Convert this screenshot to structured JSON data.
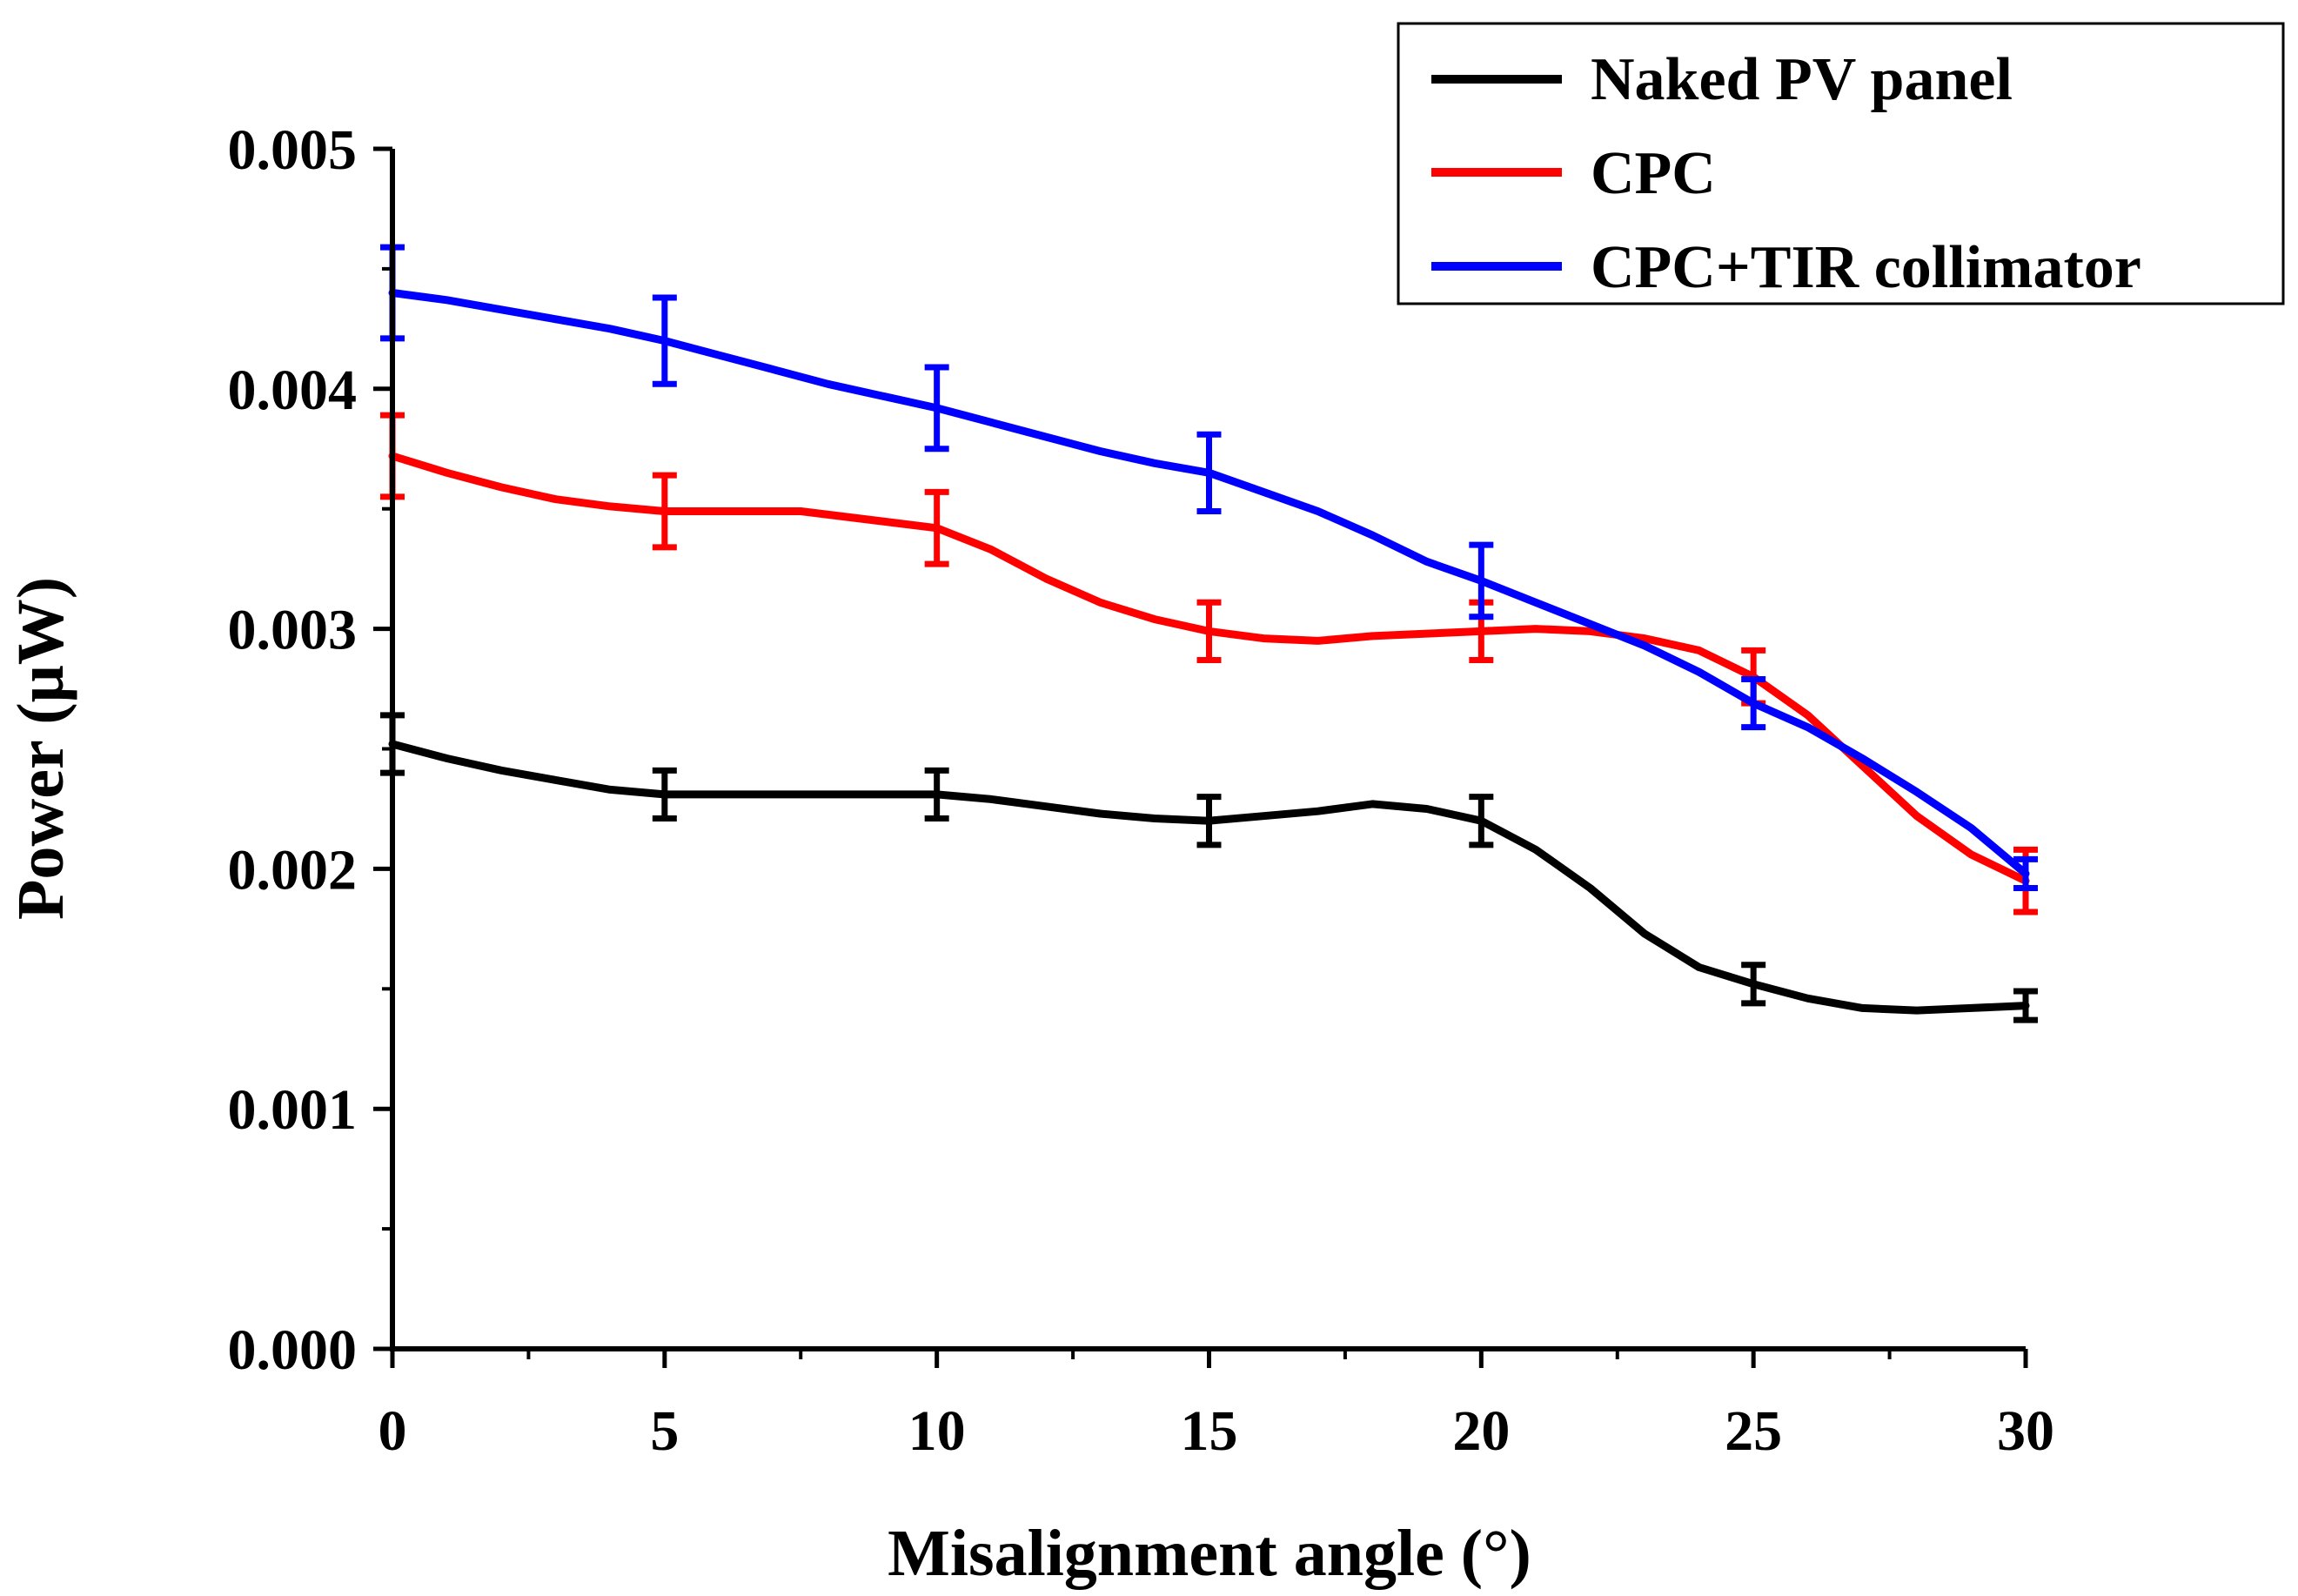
{
  "chart_data": {
    "type": "line",
    "title": "",
    "xlabel": "Misalignment angle (°)",
    "ylabel": "Power (μW)",
    "xlim": [
      0,
      30
    ],
    "ylim": [
      0.0,
      0.005
    ],
    "x_ticks": [
      0,
      5,
      10,
      15,
      20,
      25,
      30
    ],
    "x_tick_labels": [
      "0",
      "5",
      "10",
      "15",
      "20",
      "25",
      "30"
    ],
    "y_ticks": [
      0.0,
      0.001,
      0.002,
      0.003,
      0.004,
      0.005
    ],
    "y_tick_labels": [
      "0.000",
      "0.001",
      "0.002",
      "0.003",
      "0.004",
      "0.005"
    ],
    "grid": false,
    "legend_position": "top-right",
    "series": [
      {
        "name": "Naked PV panel",
        "color": "#000000",
        "curve_x": [
          0,
          1,
          2,
          3,
          4,
          5,
          7.5,
          10,
          11,
          12,
          13,
          14,
          15,
          16,
          17,
          18,
          19,
          20,
          21,
          22,
          23,
          24,
          25,
          26,
          27,
          28,
          29,
          30
        ],
        "curve_y": [
          0.00252,
          0.00246,
          0.00241,
          0.00237,
          0.00233,
          0.00231,
          0.00231,
          0.00231,
          0.00229,
          0.00226,
          0.00223,
          0.00221,
          0.0022,
          0.00222,
          0.00224,
          0.00227,
          0.00225,
          0.0022,
          0.00208,
          0.00192,
          0.00173,
          0.00159,
          0.00152,
          0.00146,
          0.00142,
          0.00141,
          0.00142,
          0.00143
        ],
        "points_x": [
          0,
          5,
          10,
          15,
          20,
          25,
          30
        ],
        "points_y": [
          0.00252,
          0.00231,
          0.00231,
          0.0022,
          0.0022,
          0.00152,
          0.00143
        ],
        "errors": [
          0.00012,
          0.0001,
          0.0001,
          0.0001,
          0.0001,
          8e-05,
          6e-05
        ]
      },
      {
        "name": "CPC",
        "color": "#ff0000",
        "curve_x": [
          0,
          1,
          2,
          3,
          4,
          5,
          7.5,
          10,
          11,
          12,
          13,
          14,
          15,
          16,
          17,
          18,
          19,
          20,
          21,
          22,
          23,
          24,
          25,
          26,
          27,
          28,
          29,
          30
        ],
        "curve_y": [
          0.00372,
          0.00365,
          0.00359,
          0.00354,
          0.00351,
          0.00349,
          0.00349,
          0.00342,
          0.00333,
          0.00321,
          0.00311,
          0.00304,
          0.00299,
          0.00296,
          0.00295,
          0.00297,
          0.00298,
          0.00299,
          0.003,
          0.00299,
          0.00296,
          0.00291,
          0.0028,
          0.00264,
          0.00243,
          0.00222,
          0.00206,
          0.00195
        ],
        "points_x": [
          0,
          5,
          10,
          15,
          20,
          25,
          30
        ],
        "points_y": [
          0.00372,
          0.00349,
          0.00342,
          0.00299,
          0.00299,
          0.0028,
          0.00195
        ],
        "errors": [
          0.00017,
          0.00015,
          0.00015,
          0.00012,
          0.00012,
          0.00011,
          0.00013
        ]
      },
      {
        "name": "CPC+TIR collimator",
        "color": "#0000ff",
        "curve_x": [
          0,
          1,
          2,
          3,
          4,
          5,
          6,
          7,
          8,
          9,
          10,
          11,
          12,
          13,
          14,
          15,
          16,
          17,
          18,
          19,
          20,
          21,
          22,
          23,
          24,
          25,
          26,
          27,
          28,
          29,
          30
        ],
        "curve_y": [
          0.0044,
          0.00437,
          0.00433,
          0.00429,
          0.00425,
          0.0042,
          0.00414,
          0.00408,
          0.00402,
          0.00397,
          0.00392,
          0.00386,
          0.0038,
          0.00374,
          0.00369,
          0.00365,
          0.00357,
          0.00349,
          0.00339,
          0.00328,
          0.0032,
          0.00311,
          0.00302,
          0.00293,
          0.00282,
          0.00269,
          0.00259,
          0.00246,
          0.00232,
          0.00217,
          0.00198
        ],
        "points_x": [
          0,
          5,
          10,
          15,
          20,
          25,
          30
        ],
        "points_y": [
          0.0044,
          0.0042,
          0.00392,
          0.00365,
          0.0032,
          0.00269,
          0.00198
        ],
        "errors": [
          0.00019,
          0.00018,
          0.00017,
          0.00016,
          0.00015,
          0.0001,
          6e-05
        ]
      }
    ]
  }
}
